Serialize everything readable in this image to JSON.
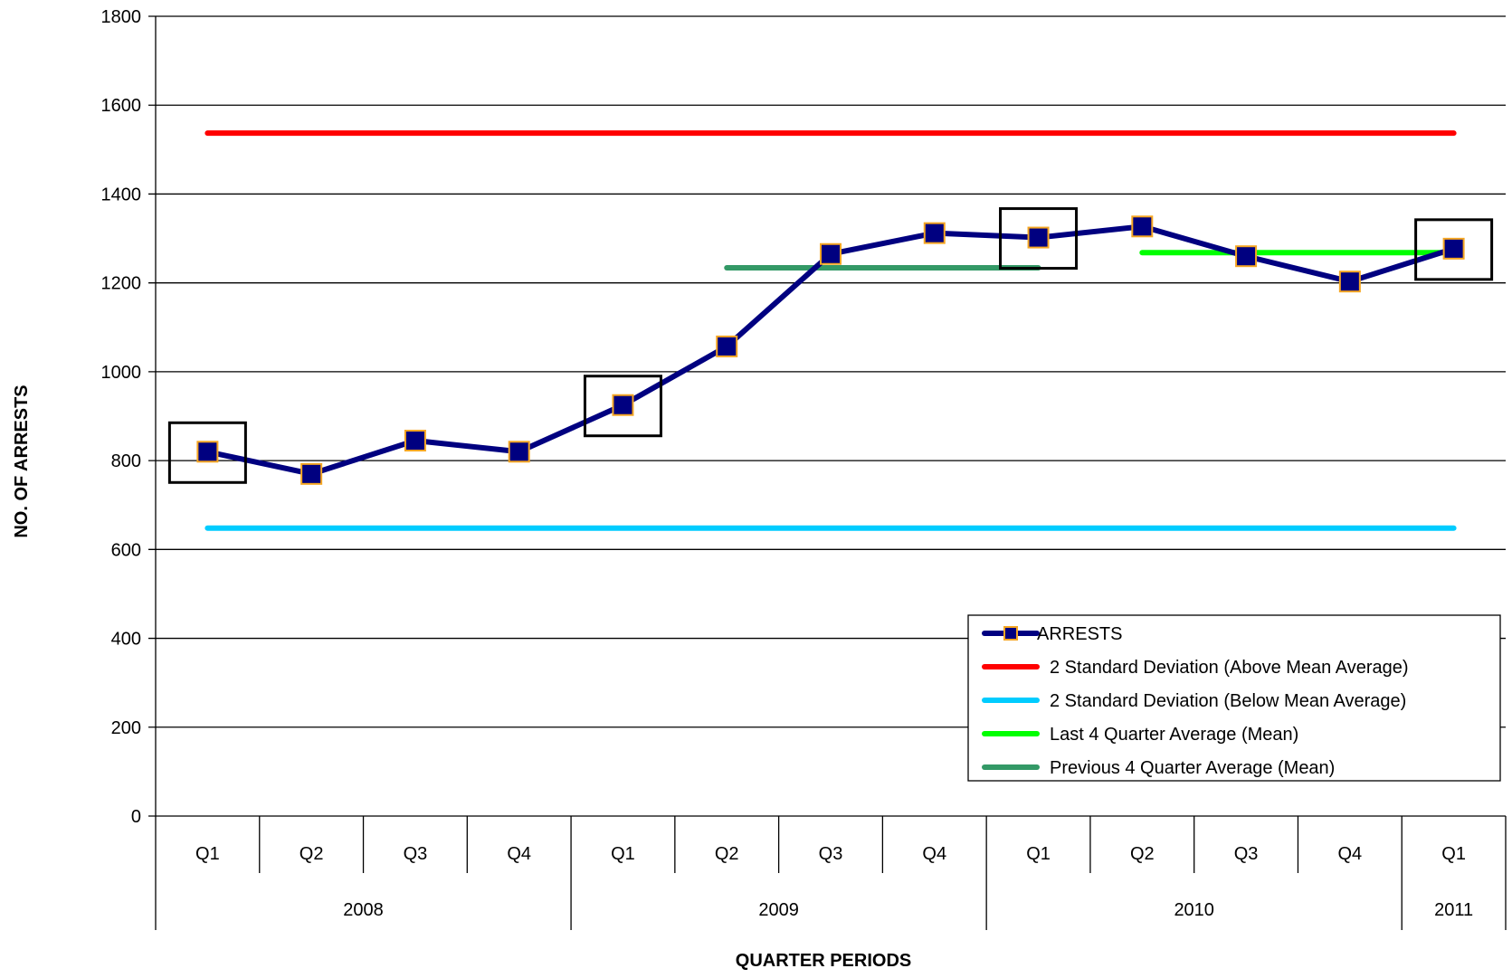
{
  "chart_data": {
    "type": "line",
    "title": "",
    "xlabel": "QUARTER PERIODS",
    "ylabel": "NO. OF ARRESTS",
    "ylim": [
      0,
      1800
    ],
    "yticks": [
      "0",
      "200",
      "400",
      "600",
      "800",
      "1000",
      "1200",
      "1400",
      "1600",
      "1800"
    ],
    "grid": "horizontal",
    "legend_position": "lower-right inside",
    "categories": [
      "Q1",
      "Q2",
      "Q3",
      "Q4",
      "Q1",
      "Q2",
      "Q3",
      "Q4",
      "Q1",
      "Q2",
      "Q3",
      "Q4",
      "Q1"
    ],
    "years": [
      {
        "label": "2008",
        "quarters": 4
      },
      {
        "label": "2009",
        "quarters": 4
      },
      {
        "label": "2010",
        "quarters": 4
      },
      {
        "label": "2011",
        "quarters": 1
      }
    ],
    "series": [
      {
        "name": "ARRESTS",
        "kind": "line-with-markers",
        "color": "#000080",
        "marker_edge": "#f5a623",
        "values": [
          820,
          770,
          845,
          820,
          925,
          1057,
          1265,
          1312,
          1302,
          1327,
          1260,
          1203,
          1277
        ]
      },
      {
        "name": "2 Standard Deviation (Above Mean Average)",
        "kind": "constant",
        "color": "#ff0000",
        "value": 1537,
        "x_range": [
          0,
          12
        ]
      },
      {
        "name": "2 Standard Deviation (Below Mean Average)",
        "kind": "constant",
        "color": "#00ccff",
        "value": 648,
        "x_range": [
          0,
          12
        ]
      },
      {
        "name": "Last 4 Quarter Average (Mean)",
        "kind": "constant",
        "color": "#00ff00",
        "value": 1268,
        "x_range": [
          9,
          12
        ]
      },
      {
        "name": "Previous 4 Quarter Average (Mean)",
        "kind": "constant",
        "color": "#339966",
        "value": 1234,
        "x_range": [
          5,
          8
        ]
      }
    ],
    "highlighted_points": [
      0,
      4,
      8,
      12
    ]
  }
}
